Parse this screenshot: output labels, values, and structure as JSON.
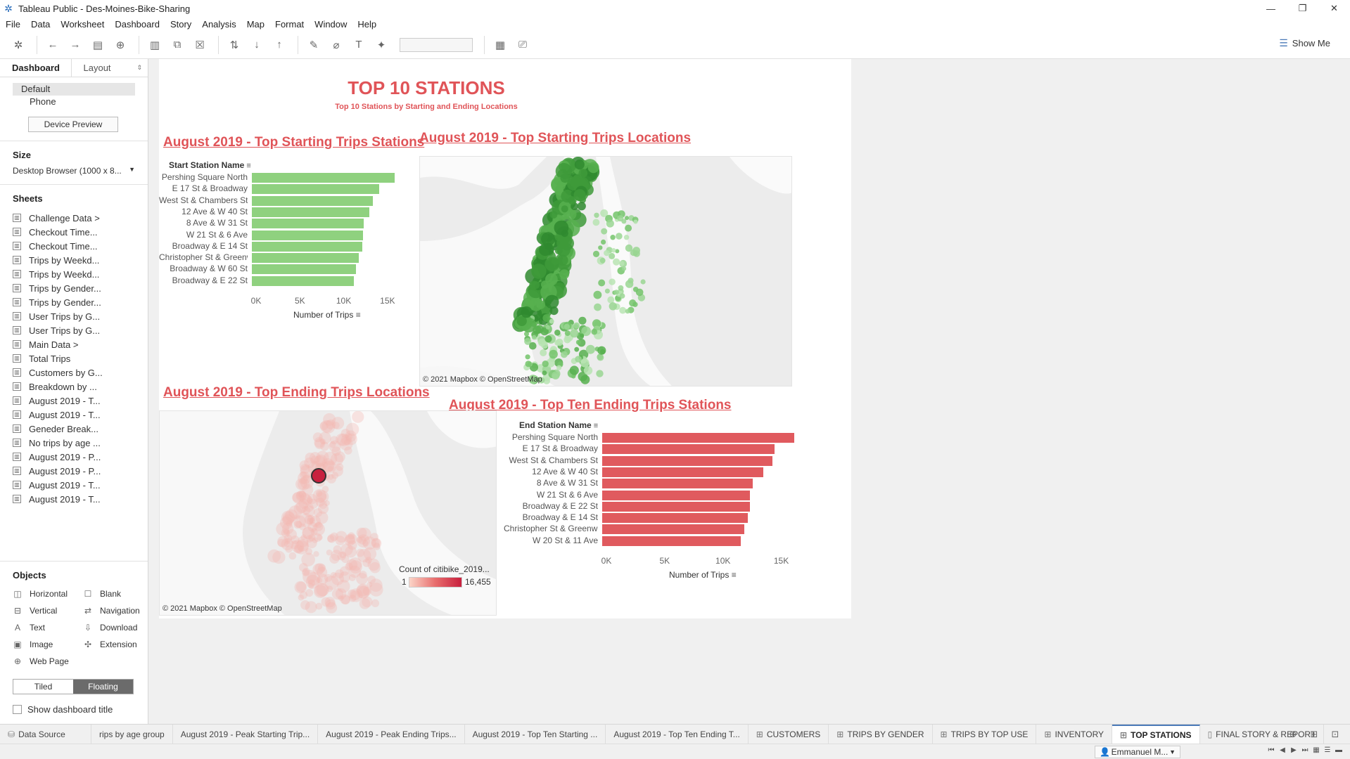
{
  "window": {
    "title": "Tableau Public - Des-Moines-Bike-Sharing",
    "controls": [
      "—",
      "❐",
      "✕"
    ]
  },
  "menu": [
    "File",
    "Data",
    "Worksheet",
    "Dashboard",
    "Story",
    "Analysis",
    "Map",
    "Format",
    "Window",
    "Help"
  ],
  "toolbar": {
    "show_me_label": "Show Me"
  },
  "left_pane": {
    "tab_dashboard": "Dashboard",
    "tab_layout": "Layout",
    "device_default": "Default",
    "device_phone": "Phone",
    "device_preview": "Device Preview",
    "size_title": "Size",
    "size_value": "Desktop Browser (1000 x 8...",
    "sheets_title": "Sheets",
    "sheets": [
      "Challenge Data >",
      "Checkout Time...",
      "Checkout Time...",
      "Trips by Weekd...",
      "Trips by Weekd...",
      "Trips by Gender...",
      "Trips by Gender...",
      "User Trips by G...",
      "User Trips by G...",
      "Main Data >",
      "Total Trips",
      "Customers by G...",
      "Breakdown by ...",
      "August 2019 - T...",
      "August 2019 - T...",
      "Geneder Break...",
      "No trips by age ...",
      "August 2019 - P...",
      "August 2019 - P...",
      "August 2019 - T...",
      "August 2019 - T..."
    ],
    "objects_title": "Objects",
    "objects": [
      {
        "label": "Horizontal",
        "icon": "horizontal-icon",
        "glyph": "◫"
      },
      {
        "label": "Blank",
        "icon": "blank-icon",
        "glyph": "☐"
      },
      {
        "label": "Vertical",
        "icon": "vertical-icon",
        "glyph": "⊟"
      },
      {
        "label": "Navigation",
        "icon": "navigation-icon",
        "glyph": "⇄"
      },
      {
        "label": "Text",
        "icon": "text-icon",
        "glyph": "A"
      },
      {
        "label": "Download",
        "icon": "download-icon",
        "glyph": "⇩"
      },
      {
        "label": "Image",
        "icon": "image-icon",
        "glyph": "▣"
      },
      {
        "label": "Extension",
        "icon": "extension-icon",
        "glyph": "✣"
      },
      {
        "label": "Web Page",
        "icon": "web-page-icon",
        "glyph": "⊕"
      }
    ],
    "tiled": "Tiled",
    "floating": "Floating",
    "show_dashboard_title": "Show dashboard title"
  },
  "dashboard": {
    "title": "TOP 10 STATIONS",
    "subtitle": "Top 10 Stations by Starting and Ending Locations",
    "start_bar_title": "August 2019 - Top Starting Trips Stations",
    "start_map_title": "August 2019 - Top Starting Trips Locations",
    "end_map_title": "August 2019 - Top Ending Trips Locations",
    "end_bar_title": "August 2019 - Top Ten Ending Trips Stations",
    "map_attribution": "© 2021 Mapbox © OpenStreetMap",
    "legend": {
      "title": "Count of citibike_2019...",
      "min": "1",
      "max": "16,455",
      "colors": [
        "#fbd4c7",
        "#c8203e"
      ]
    }
  },
  "chart_data": [
    {
      "type": "bar",
      "orientation": "horizontal",
      "row_header": "Start Station Name",
      "categories": [
        "Pershing Square North",
        "E 17 St & Broadway",
        "West St & Chambers St",
        "12 Ave & W 40 St",
        "8 Ave & W 31 St",
        "W 21 St & 6 Ave",
        "Broadway & E 14 St",
        "Christopher St & Greenwic..",
        "Broadway & W 60 St",
        "Broadway & E 22 St"
      ],
      "values": [
        16300,
        14500,
        13800,
        13400,
        12800,
        12700,
        12600,
        12200,
        11900,
        11600
      ],
      "xlabel": "Number of Trips",
      "xticks": [
        "0K",
        "5K",
        "10K",
        "15K"
      ],
      "xlim": [
        0,
        17500
      ],
      "color": "#8fd17f"
    },
    {
      "type": "bar",
      "orientation": "horizontal",
      "row_header": "End Station Name",
      "categories": [
        "Pershing Square North",
        "E 17 St & Broadway",
        "West St & Chambers St",
        "12 Ave & W 40 St",
        "8 Ave & W 31 St",
        "W 21 St & 6 Ave",
        "Broadway & E 22 St",
        "Broadway & E 14 St",
        "Christopher St & Greenwic..",
        "W 20 St & 11 Ave"
      ],
      "values": [
        16455,
        14800,
        14600,
        13800,
        12900,
        12700,
        12700,
        12500,
        12200,
        11900
      ],
      "xlabel": "Number of Trips",
      "xticks": [
        "0K",
        "5K",
        "10K",
        "15K"
      ],
      "xlim": [
        0,
        17500
      ],
      "color": "#e05a5e"
    }
  ],
  "bottom_tabs": [
    {
      "label": "Data Source",
      "icon": "database-icon",
      "glyph": "⛁",
      "kind": "datasource"
    },
    {
      "label": "rips by age group",
      "icon": "",
      "glyph": "",
      "kind": "sheet"
    },
    {
      "label": "August 2019 - Peak Starting Trip...",
      "icon": "",
      "glyph": "",
      "kind": "sheet"
    },
    {
      "label": "August 2019 - Peak Ending Trips...",
      "icon": "",
      "glyph": "",
      "kind": "sheet"
    },
    {
      "label": "August 2019 - Top Ten Starting ...",
      "icon": "",
      "glyph": "",
      "kind": "sheet"
    },
    {
      "label": "August 2019 - Top Ten Ending T...",
      "icon": "",
      "glyph": "",
      "kind": "sheet"
    },
    {
      "label": "CUSTOMERS",
      "icon": "dashboard-icon",
      "glyph": "⊞",
      "kind": "dashboard"
    },
    {
      "label": "TRIPS BY GENDER",
      "icon": "dashboard-icon",
      "glyph": "⊞",
      "kind": "dashboard"
    },
    {
      "label": "TRIPS BY TOP USE",
      "icon": "dashboard-icon",
      "glyph": "⊞",
      "kind": "dashboard"
    },
    {
      "label": "INVENTORY",
      "icon": "dashboard-icon",
      "glyph": "⊞",
      "kind": "dashboard"
    },
    {
      "label": "TOP STATIONS",
      "icon": "dashboard-icon",
      "glyph": "⊞",
      "kind": "dashboard",
      "active": true
    },
    {
      "label": "FINAL STORY & REPORT",
      "icon": "story-icon",
      "glyph": "▯",
      "kind": "story"
    }
  ],
  "status": {
    "user": "Emmanuel M..."
  }
}
